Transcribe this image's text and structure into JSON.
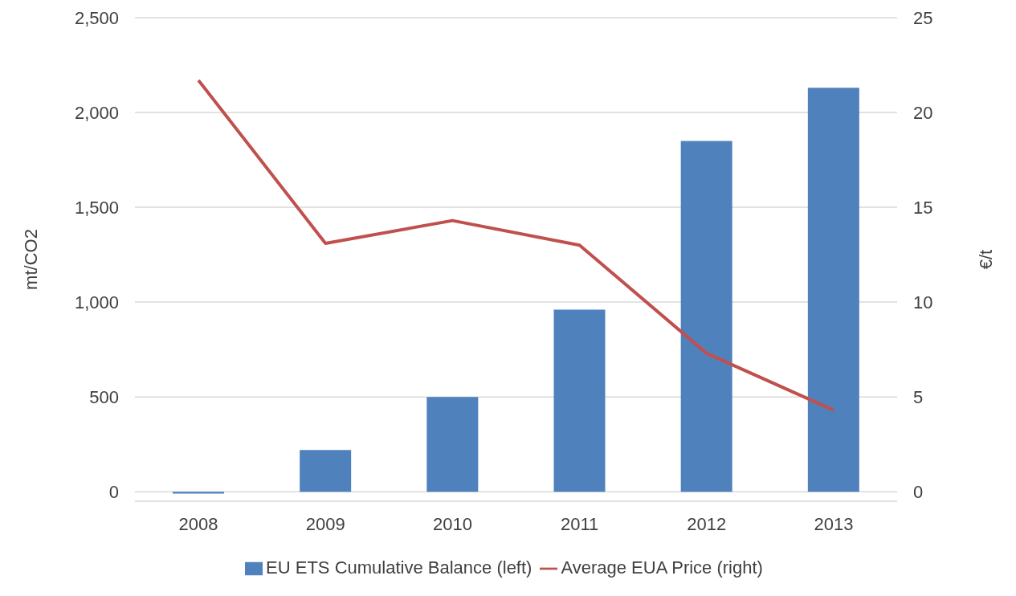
{
  "chart_data": {
    "type": "bar",
    "categories": [
      "2008",
      "2009",
      "2010",
      "2011",
      "2012",
      "2013"
    ],
    "series": [
      {
        "name": "EU ETS Cumulative Balance (left)",
        "color": "#4f81bd",
        "values": [
          -10,
          220,
          500,
          960,
          1850,
          2130
        ]
      },
      {
        "name": "Average EUA Price (right)",
        "type": "line",
        "axis": "y2",
        "color": "#c0504d",
        "values": [
          21.7,
          13.1,
          14.3,
          13.0,
          7.3,
          4.3
        ]
      }
    ],
    "ylabel": "mt/CO2",
    "y2label": "€/t",
    "ylim": [
      -50,
      2500
    ],
    "yticks": [
      {
        "value": 0,
        "label": "0"
      },
      {
        "value": 500,
        "label": "500"
      },
      {
        "value": 1000,
        "label": "1,000"
      },
      {
        "value": 1500,
        "label": "1,500"
      },
      {
        "value": 2000,
        "label": "2,000"
      },
      {
        "value": 2500,
        "label": "2,500"
      }
    ],
    "y2lim": [
      -0.5,
      25
    ],
    "y2ticks": [
      0,
      5,
      10,
      15,
      20,
      25
    ],
    "grid": "y",
    "legend": "bottom"
  }
}
